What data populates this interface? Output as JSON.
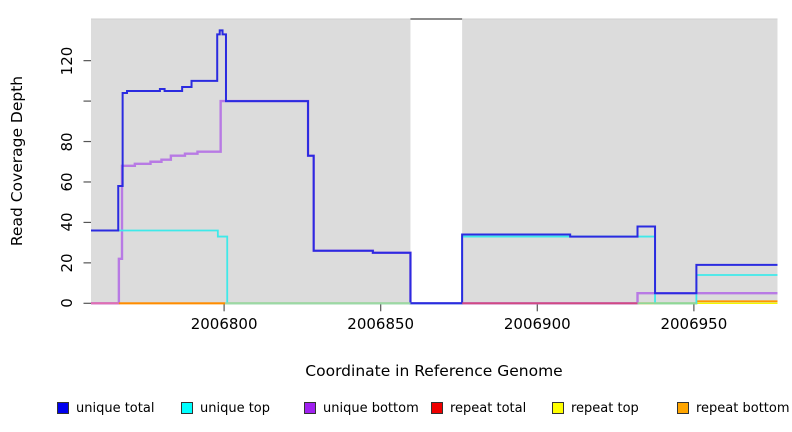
{
  "chart_data": {
    "type": "line",
    "title": "",
    "xlabel": "Coordinate in Reference Genome",
    "ylabel": "Read Coverage Depth",
    "xlim": [
      2006757.5,
      2006976.7
    ],
    "ylim": [
      0,
      140.6
    ],
    "plot_bg": "#dcdcdc",
    "grid": "off",
    "legend_position": "bottom",
    "x_ticks": [
      {
        "value": 2006800,
        "label": "2006800"
      },
      {
        "value": 2006850,
        "label": "2006850"
      },
      {
        "value": 2006900,
        "label": "2006900"
      },
      {
        "value": 2006950,
        "label": "2006950"
      }
    ],
    "y_ticks": [
      {
        "value": 0,
        "label": "0"
      },
      {
        "value": 20,
        "label": "20"
      },
      {
        "value": 40,
        "label": "40"
      },
      {
        "value": 60,
        "label": "60"
      },
      {
        "value": 80,
        "label": "80"
      },
      {
        "value": 100,
        "label": ""
      },
      {
        "value": 120,
        "label": "120"
      }
    ],
    "masked_region": {
      "from": 2006859.5,
      "to": 2006876,
      "fill": "#ffffff",
      "cap_color": "#8c8c8c"
    },
    "series": [
      {
        "name": "unique total",
        "line_color": "#2b2be0",
        "swatch_color": "#0000ee",
        "points": [
          [
            2006757.5,
            36
          ],
          [
            2006766.2,
            36
          ],
          [
            2006766.2,
            58
          ],
          [
            2006767.6,
            58
          ],
          [
            2006767.6,
            104
          ],
          [
            2006769,
            104
          ],
          [
            2006769,
            105
          ],
          [
            2006779.5,
            105
          ],
          [
            2006779.5,
            106
          ],
          [
            2006781,
            106
          ],
          [
            2006781,
            105
          ],
          [
            2006786.6,
            105
          ],
          [
            2006786.6,
            107
          ],
          [
            2006789.6,
            107
          ],
          [
            2006789.6,
            110
          ],
          [
            2006797.8,
            110
          ],
          [
            2006797.8,
            133
          ],
          [
            2006798.6,
            133
          ],
          [
            2006798.6,
            135
          ],
          [
            2006799.5,
            135
          ],
          [
            2006799.5,
            133
          ],
          [
            2006800.6,
            133
          ],
          [
            2006800.6,
            100
          ],
          [
            2006826.8,
            100
          ],
          [
            2006826.8,
            73
          ],
          [
            2006828.6,
            73
          ],
          [
            2006828.6,
            26
          ],
          [
            2006847.5,
            26
          ],
          [
            2006847.5,
            25
          ],
          [
            2006859.5,
            25
          ],
          [
            2006859.5,
            0
          ],
          [
            2006876,
            0
          ],
          [
            2006876,
            34
          ],
          [
            2006910.5,
            34
          ],
          [
            2006910.5,
            33
          ],
          [
            2006932,
            33
          ],
          [
            2006932,
            38
          ],
          [
            2006937.6,
            38
          ],
          [
            2006937.6,
            5
          ],
          [
            2006950.8,
            5
          ],
          [
            2006950.8,
            19
          ],
          [
            2006976.7,
            19
          ]
        ]
      },
      {
        "name": "unique top",
        "line_color": "#3fe9e9",
        "swatch_color": "#00ffff",
        "points": [
          [
            2006757.5,
            36
          ],
          [
            2006798,
            36
          ],
          [
            2006798,
            33
          ],
          [
            2006801,
            33
          ],
          [
            2006801,
            0
          ],
          [
            2006876,
            0
          ],
          [
            2006876,
            33
          ],
          [
            2006937.6,
            33
          ],
          [
            2006937.6,
            0
          ],
          [
            2006950.8,
            0
          ],
          [
            2006950.8,
            14
          ],
          [
            2006976.7,
            14
          ]
        ]
      },
      {
        "name": "unique bottom",
        "line_color": "#b87ae4",
        "swatch_color": "#a020f0",
        "points": [
          [
            2006757.5,
            0
          ],
          [
            2006766.4,
            0
          ],
          [
            2006766.4,
            22
          ],
          [
            2006767.4,
            22
          ],
          [
            2006767.4,
            68
          ],
          [
            2006771.5,
            68
          ],
          [
            2006771.5,
            69
          ],
          [
            2006776.5,
            69
          ],
          [
            2006776.5,
            70
          ],
          [
            2006780,
            70
          ],
          [
            2006780,
            71
          ],
          [
            2006783,
            71
          ],
          [
            2006783,
            73
          ],
          [
            2006787.5,
            73
          ],
          [
            2006787.5,
            74
          ],
          [
            2006791.5,
            74
          ],
          [
            2006791.5,
            75
          ],
          [
            2006798.9,
            75
          ],
          [
            2006798.9,
            100
          ],
          [
            2006826.8,
            100
          ],
          [
            2006826.8,
            73
          ],
          [
            2006828.6,
            73
          ],
          [
            2006828.6,
            26
          ],
          [
            2006847.5,
            26
          ],
          [
            2006847.5,
            25
          ],
          [
            2006859.5,
            25
          ],
          [
            2006859.5,
            0
          ],
          [
            2006932,
            0
          ],
          [
            2006932,
            5
          ],
          [
            2006976.7,
            5
          ]
        ]
      },
      {
        "name": "repeat total",
        "line_color": "#dd1515",
        "swatch_color": "#ee0000",
        "points": [
          [
            2006757.5,
            0
          ],
          [
            2006976.7,
            0
          ]
        ]
      },
      {
        "name": "repeat top",
        "line_color": "#f5f500",
        "swatch_color": "#ffff00",
        "points": [
          [
            2006757.5,
            0
          ],
          [
            2006976.7,
            0
          ]
        ]
      },
      {
        "name": "repeat bottom",
        "line_color": "#ff9500",
        "swatch_color": "#ffa500",
        "points": [
          [
            2006757.5,
            0
          ],
          [
            2006950.8,
            0
          ],
          [
            2006950.8,
            1
          ],
          [
            2006976.7,
            1
          ]
        ]
      }
    ],
    "baseline_segments": [
      {
        "from": 2006757.5,
        "to": 2006766.4,
        "value": 0,
        "color": "#e26fb0"
      },
      {
        "from": 2006766.4,
        "to": 2006800.3,
        "value": 0,
        "color": "#ff8c00"
      },
      {
        "from": 2006800.3,
        "to": 2006859.5,
        "value": 0,
        "color": "#9cd9a4"
      },
      {
        "from": 2006876.0,
        "to": 2006932.0,
        "value": 0,
        "color": "#d14a80"
      },
      {
        "from": 2006932.0,
        "to": 2006950.8,
        "value": 0,
        "color": "#8fd896"
      }
    ]
  }
}
